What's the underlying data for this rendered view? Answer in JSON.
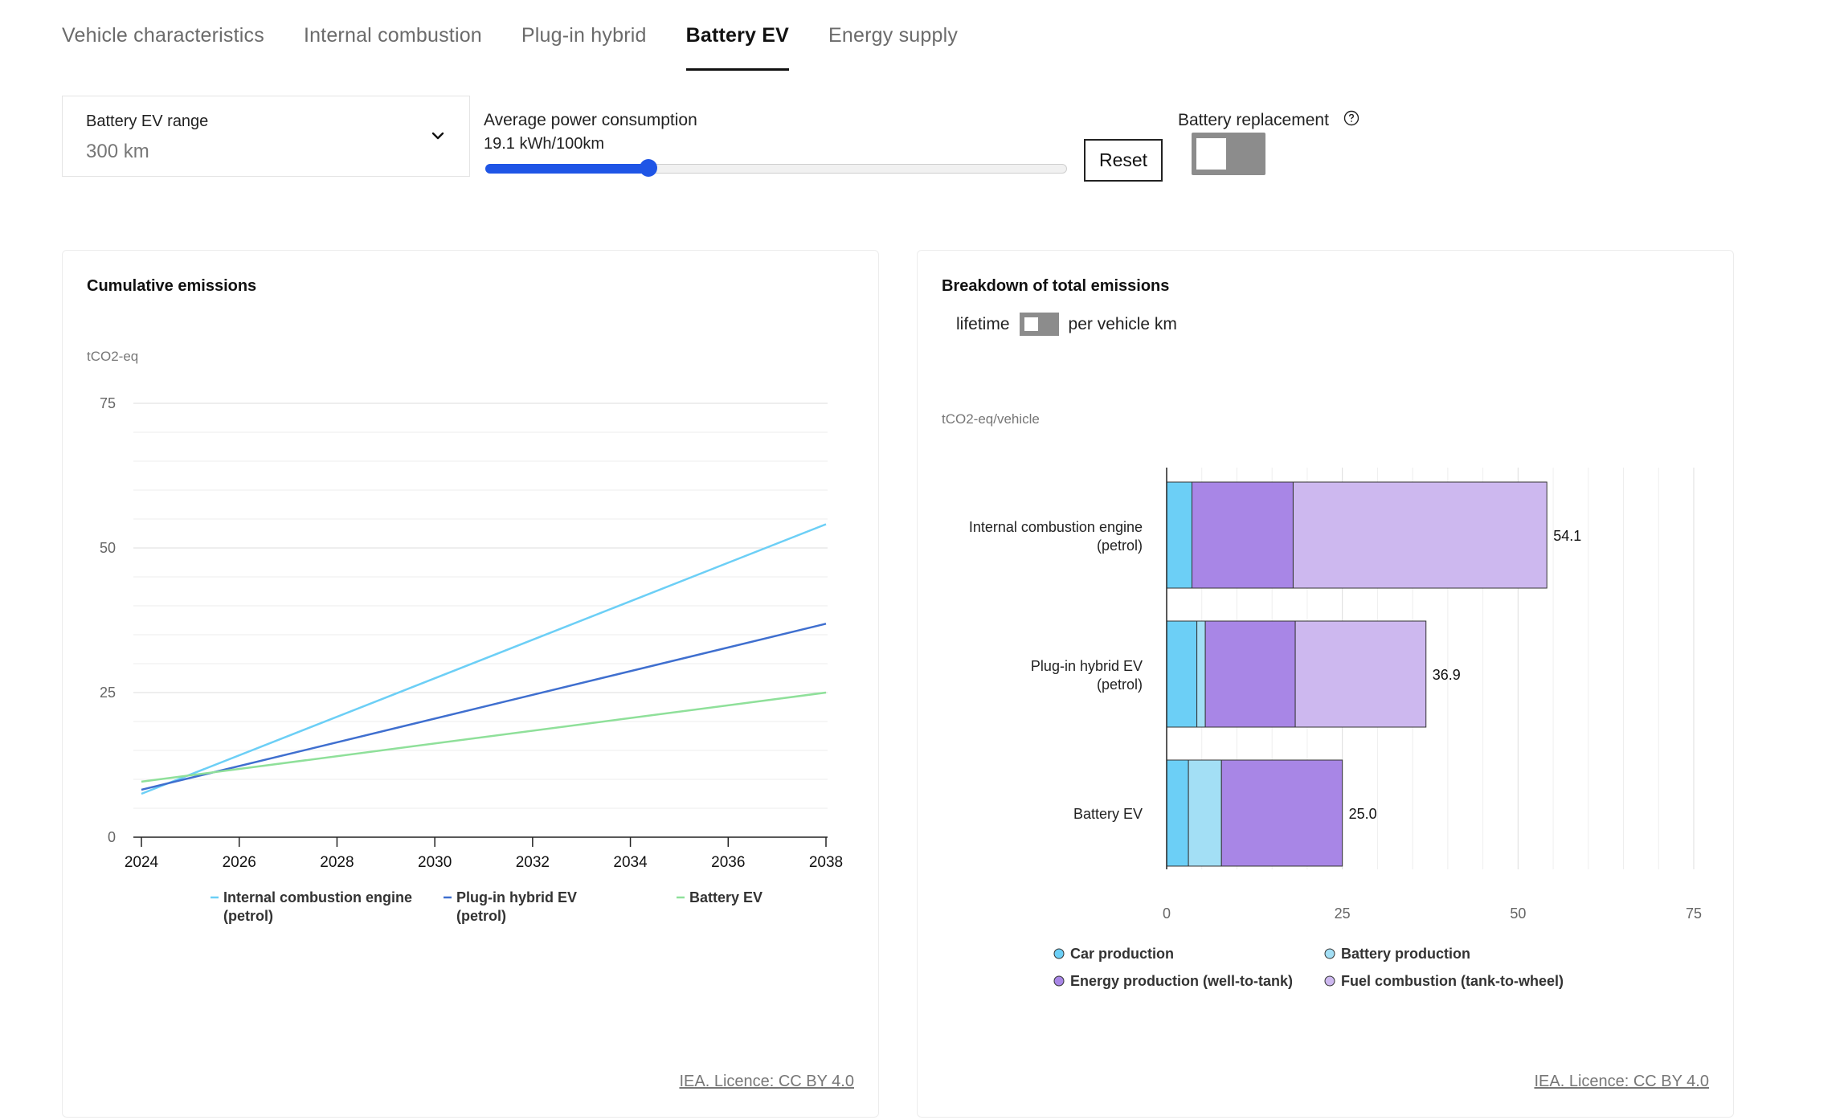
{
  "tabs": [
    {
      "label": "Vehicle characteristics",
      "active": false
    },
    {
      "label": "Internal combustion",
      "active": false
    },
    {
      "label": "Plug-in hybrid",
      "active": false
    },
    {
      "label": "Battery EV",
      "active": true
    },
    {
      "label": "Energy supply",
      "active": false
    }
  ],
  "controls": {
    "range_label": "Battery EV range",
    "range_value": "300 km",
    "consumption_label": "Average power consumption",
    "consumption_value": "19.1 kWh/100km",
    "consumption_slider_fraction": 0.28,
    "reset_label": "Reset",
    "battery_replacement_label": "Battery replacement",
    "battery_replacement_on": false
  },
  "left_card": {
    "title": "Cumulative emissions",
    "unit": "tCO2-eq",
    "licence": "IEA. Licence: CC BY 4.0"
  },
  "right_card": {
    "title": "Breakdown of total emissions",
    "toggle_left": "lifetime",
    "toggle_right": "per vehicle km",
    "unit": "tCO2-eq/vehicle",
    "licence": "IEA. Licence: CC BY 4.0"
  },
  "colors": {
    "ice": "#6ccff6",
    "phev": "#3f6fcf",
    "bev": "#8fe09a",
    "car_production": "#6ccff6",
    "battery_production": "#a3dff5",
    "energy_production": "#a886e6",
    "fuel_combustion": "#cdb8ef"
  },
  "chart_data": [
    {
      "type": "line",
      "title": "Cumulative emissions",
      "ylabel": "tCO2-eq",
      "x": [
        2024,
        2038
      ],
      "xticks": [
        "2024",
        "2026",
        "2028",
        "2030",
        "2032",
        "2034",
        "2036",
        "2038"
      ],
      "yticks": [
        "0",
        "25",
        "50",
        "75"
      ],
      "xlim": [
        2024,
        2038
      ],
      "ylim": [
        0,
        75
      ],
      "grid": true,
      "legend_position": "bottom",
      "series": [
        {
          "name": "Internal combustion engine (petrol)",
          "x": [
            2024,
            2038
          ],
          "y": [
            7.5,
            54.1
          ]
        },
        {
          "name": "Plug-in hybrid EV (petrol)",
          "x": [
            2024,
            2038
          ],
          "y": [
            8.2,
            36.9
          ]
        },
        {
          "name": "Battery EV",
          "x": [
            2024,
            2038
          ],
          "y": [
            9.6,
            25.0
          ]
        }
      ]
    },
    {
      "type": "bar",
      "orientation": "horizontal",
      "stacked": true,
      "title": "Breakdown of total emissions",
      "ylabel": "tCO2-eq/vehicle",
      "categories": [
        "Internal combustion engine (petrol)",
        "Plug-in hybrid EV (petrol)",
        "Battery EV"
      ],
      "xticks": [
        "0",
        "25",
        "50",
        "75"
      ],
      "xlim": [
        0,
        75
      ],
      "grid": true,
      "legend_position": "bottom",
      "totals": [
        "54.1",
        "36.9",
        "25.0"
      ],
      "series": [
        {
          "name": "Car production",
          "values": [
            3.6,
            4.3,
            3.1
          ]
        },
        {
          "name": "Battery production",
          "values": [
            0,
            1.2,
            4.7
          ]
        },
        {
          "name": "Energy production (well-to-tank)",
          "values": [
            14.4,
            12.8,
            17.2
          ]
        },
        {
          "name": "Fuel combustion (tank-to-wheel)",
          "values": [
            36.1,
            18.6,
            0
          ]
        }
      ]
    }
  ]
}
